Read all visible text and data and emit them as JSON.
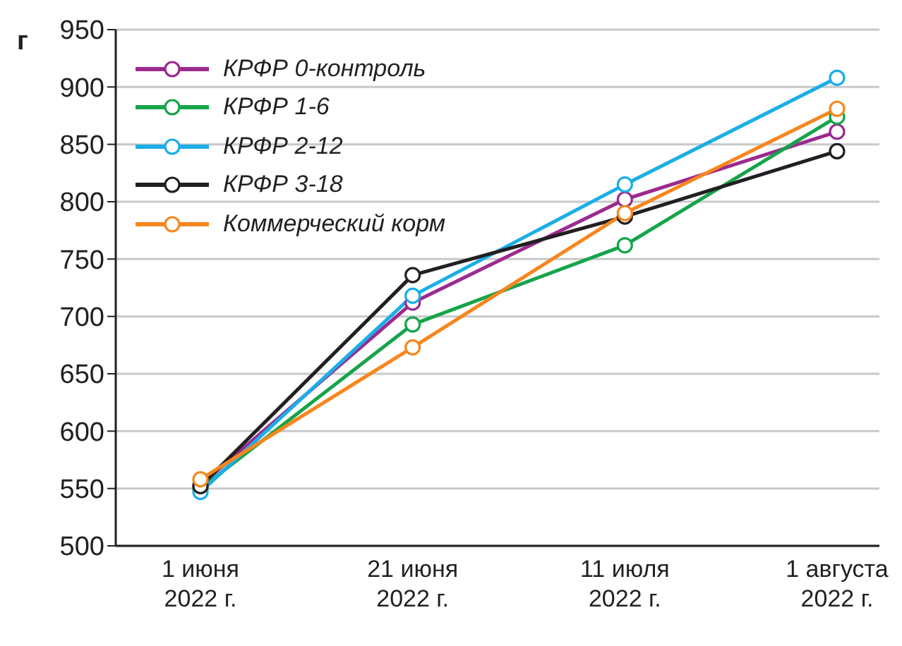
{
  "chart_data": {
    "type": "line",
    "ylabel": "г",
    "categories": [
      "1 июня\n2022 г.",
      "21 июня\n2022 г.",
      "11 июля\n2022 г.",
      "1 августа\n2022 г."
    ],
    "series": [
      {
        "name": "КРФР 0-контроль",
        "color": "#9b2a8f",
        "values": [
          553,
          712,
          802,
          861
        ]
      },
      {
        "name": "КРФР 1-6",
        "color": "#14a44a",
        "values": [
          550,
          693,
          762,
          874
        ]
      },
      {
        "name": "КРФР 2-12",
        "color": "#1aaee8",
        "values": [
          547,
          718,
          815,
          908
        ]
      },
      {
        "name": "КРФР 3-18",
        "color": "#231f20",
        "values": [
          552,
          736,
          787,
          844
        ]
      },
      {
        "name": "Коммерческий корм",
        "color": "#f7861d",
        "values": [
          558,
          673,
          790,
          881
        ]
      }
    ],
    "ylim": [
      500,
      950
    ],
    "yticks": [
      500,
      550,
      600,
      650,
      700,
      750,
      800,
      850,
      900,
      950
    ],
    "grid": "y",
    "legend": "top left",
    "marker": "circle",
    "line_style": "solid"
  }
}
